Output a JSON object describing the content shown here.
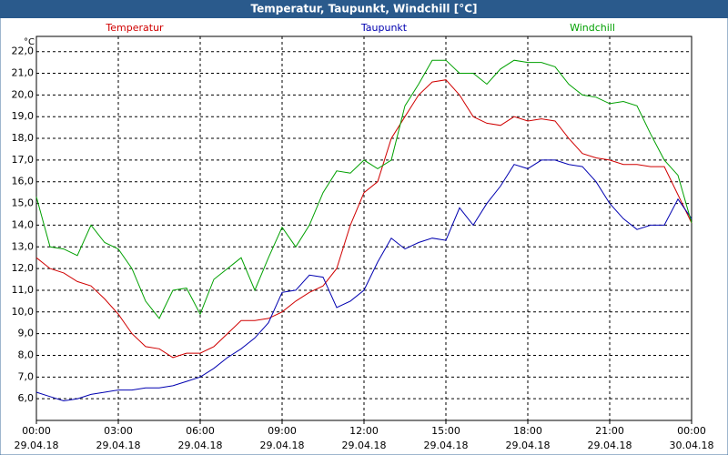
{
  "chart_data": {
    "type": "line",
    "title": "Temperatur, Taupunkt, Windchill [°C]",
    "y_unit": "°C",
    "x": [
      0,
      0.5,
      1,
      1.5,
      2,
      2.5,
      3,
      3.5,
      4,
      4.5,
      5,
      5.5,
      6,
      6.5,
      7,
      7.5,
      8,
      8.5,
      9,
      9.5,
      10,
      10.5,
      11,
      11.5,
      12,
      12.5,
      13,
      13.5,
      14,
      14.5,
      15,
      15.5,
      16,
      16.5,
      17,
      17.5,
      18,
      18.5,
      19,
      19.5,
      20,
      20.5,
      21,
      21.5,
      22,
      22.5,
      23,
      23.5,
      24
    ],
    "series": [
      {
        "name": "Temperatur",
        "color": "#d00000",
        "values": [
          12.5,
          12.0,
          11.8,
          11.4,
          11.2,
          10.6,
          9.9,
          9.0,
          8.4,
          8.3,
          7.9,
          8.1,
          8.1,
          8.4,
          9.0,
          9.6,
          9.6,
          9.7,
          10.0,
          10.5,
          10.9,
          11.2,
          12.0,
          14.0,
          15.5,
          16.0,
          18.0,
          19.0,
          20.0,
          20.6,
          20.7,
          20.0,
          19.0,
          18.7,
          18.6,
          19.0,
          18.8,
          18.9,
          18.8,
          18.0,
          17.3,
          17.1,
          17.0,
          16.8,
          16.8,
          16.7,
          16.7,
          15.4,
          14.1
        ]
      },
      {
        "name": "Taupunkt",
        "color": "#0000b0",
        "values": [
          6.3,
          6.1,
          5.9,
          6.0,
          6.2,
          6.3,
          6.4,
          6.4,
          6.5,
          6.5,
          6.6,
          6.8,
          7.0,
          7.4,
          7.9,
          8.3,
          8.8,
          9.5,
          10.9,
          11.0,
          11.7,
          11.6,
          10.2,
          10.5,
          11.0,
          12.3,
          13.4,
          12.9,
          13.2,
          13.4,
          13.3,
          14.8,
          14.0,
          15.0,
          15.8,
          16.8,
          16.6,
          17.0,
          17.0,
          16.8,
          16.7,
          16.0,
          15.0,
          14.3,
          13.8,
          14.0,
          14.0,
          15.2,
          14.3
        ]
      },
      {
        "name": "Windchill",
        "color": "#00a000",
        "values": [
          15.3,
          13.0,
          12.9,
          12.6,
          14.0,
          13.2,
          12.9,
          12.0,
          10.5,
          9.7,
          11.0,
          11.1,
          9.9,
          11.5,
          12.0,
          12.5,
          11.0,
          12.5,
          13.9,
          13.0,
          14.0,
          15.5,
          16.5,
          16.4,
          17.0,
          16.6,
          17.0,
          19.5,
          20.5,
          21.6,
          21.6,
          21.0,
          21.0,
          20.5,
          21.2,
          21.6,
          21.5,
          21.5,
          21.3,
          20.5,
          20.0,
          19.9,
          19.6,
          19.7,
          19.5,
          18.2,
          17.0,
          16.3,
          14.1
        ]
      }
    ],
    "xlim": [
      0,
      24
    ],
    "xticks": [
      {
        "value": 0,
        "label": "00:00"
      },
      {
        "value": 3,
        "label": "03:00"
      },
      {
        "value": 6,
        "label": "06:00"
      },
      {
        "value": 9,
        "label": "09:00"
      },
      {
        "value": 12,
        "label": "12:00"
      },
      {
        "value": 15,
        "label": "15:00"
      },
      {
        "value": 18,
        "label": "18:00"
      },
      {
        "value": 21,
        "label": "21:00"
      },
      {
        "value": 24,
        "label": "00:00"
      }
    ],
    "xtick_dates": [
      "29.04.18",
      "29.04.18",
      "29.04.18",
      "29.04.18",
      "29.04.18",
      "29.04.18",
      "29.04.18",
      "29.04.18",
      "30.04.18"
    ],
    "ylim": [
      5.0,
      22.7
    ],
    "yticks": [
      {
        "value": 6,
        "label": "6,0"
      },
      {
        "value": 7,
        "label": "7,0"
      },
      {
        "value": 8,
        "label": "8,0"
      },
      {
        "value": 9,
        "label": "9,0"
      },
      {
        "value": 10,
        "label": "10,0"
      },
      {
        "value": 11,
        "label": "11,0"
      },
      {
        "value": 12,
        "label": "12,0"
      },
      {
        "value": 13,
        "label": "13,0"
      },
      {
        "value": 14,
        "label": "14,0"
      },
      {
        "value": 15,
        "label": "15,0"
      },
      {
        "value": 16,
        "label": "16,0"
      },
      {
        "value": 17,
        "label": "17,0"
      },
      {
        "value": 18,
        "label": "18,0"
      },
      {
        "value": 19,
        "label": "19,0"
      },
      {
        "value": 20,
        "label": "20,0"
      },
      {
        "value": 21,
        "label": "21,0"
      },
      {
        "value": 22,
        "label": "22,0"
      }
    ],
    "grid": true
  }
}
